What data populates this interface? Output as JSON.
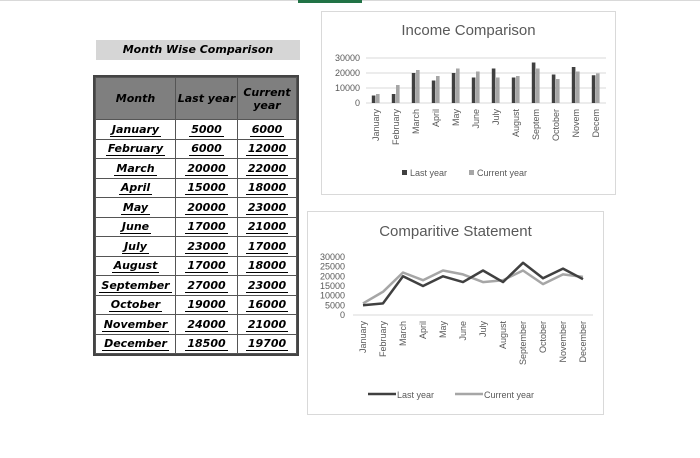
{
  "table": {
    "title": "Month Wise Comparison",
    "headers": {
      "month": "Month",
      "last_year": "Last year",
      "current_year_line1": "Current",
      "current_year_line2": "year"
    },
    "rows": [
      {
        "month": "January",
        "last": "5000",
        "current": "6000"
      },
      {
        "month": "February",
        "last": "6000",
        "current": "12000"
      },
      {
        "month": "March",
        "last": "20000",
        "current": "22000"
      },
      {
        "month": "April",
        "last": "15000",
        "current": "18000"
      },
      {
        "month": "May",
        "last": "20000",
        "current": "23000"
      },
      {
        "month": "June",
        "last": "17000",
        "current": "21000"
      },
      {
        "month": "July",
        "last": "23000",
        "current": "17000"
      },
      {
        "month": "August",
        "last": "17000",
        "current": "18000"
      },
      {
        "month": "September",
        "last": "27000",
        "current": "23000"
      },
      {
        "month": "October",
        "last": "19000",
        "current": "16000"
      },
      {
        "month": "November",
        "last": "24000",
        "current": "21000"
      },
      {
        "month": "December",
        "last": "18500",
        "current": "19700"
      }
    ]
  },
  "colors": {
    "last_year": "#404040",
    "current_year": "#a6a6a6",
    "header_fill": "#7f7f7f",
    "title_fill": "#d6d6d6"
  },
  "chart_data": [
    {
      "type": "bar",
      "title": "Income Comparison",
      "categories": [
        "January",
        "February",
        "March",
        "April",
        "May",
        "June",
        "July",
        "August",
        "September",
        "October",
        "November",
        "December"
      ],
      "category_labels": [
        "January",
        "February",
        "March",
        "April",
        "May",
        "June",
        "July",
        "August",
        "Septem",
        "October",
        "Novem",
        "Decem"
      ],
      "series": [
        {
          "name": "Last year",
          "values": [
            5000,
            6000,
            20000,
            15000,
            20000,
            17000,
            23000,
            17000,
            27000,
            19000,
            24000,
            18500
          ]
        },
        {
          "name": "Current year",
          "values": [
            6000,
            12000,
            22000,
            18000,
            23000,
            21000,
            17000,
            18000,
            23000,
            16000,
            21000,
            19700
          ]
        }
      ],
      "ylim": [
        0,
        30000
      ],
      "yticks": [
        "0",
        "10000",
        "20000",
        "30000"
      ],
      "grid": true,
      "legend_position": "bottom"
    },
    {
      "type": "line",
      "title": "Comparitive Statement",
      "categories": [
        "January",
        "February",
        "March",
        "April",
        "May",
        "June",
        "July",
        "August",
        "September",
        "October",
        "November",
        "December"
      ],
      "series": [
        {
          "name": "Last year",
          "values": [
            5000,
            6000,
            20000,
            15000,
            20000,
            17000,
            23000,
            17000,
            27000,
            19000,
            24000,
            18500
          ]
        },
        {
          "name": "Current year",
          "values": [
            6000,
            12000,
            22000,
            18000,
            23000,
            21000,
            17000,
            18000,
            23000,
            16000,
            21000,
            19700
          ]
        }
      ],
      "ylim": [
        0,
        30000
      ],
      "yticks": [
        "0",
        "5000",
        "10000",
        "15000",
        "20000",
        "25000",
        "30000"
      ],
      "grid": false,
      "legend_position": "bottom"
    }
  ]
}
